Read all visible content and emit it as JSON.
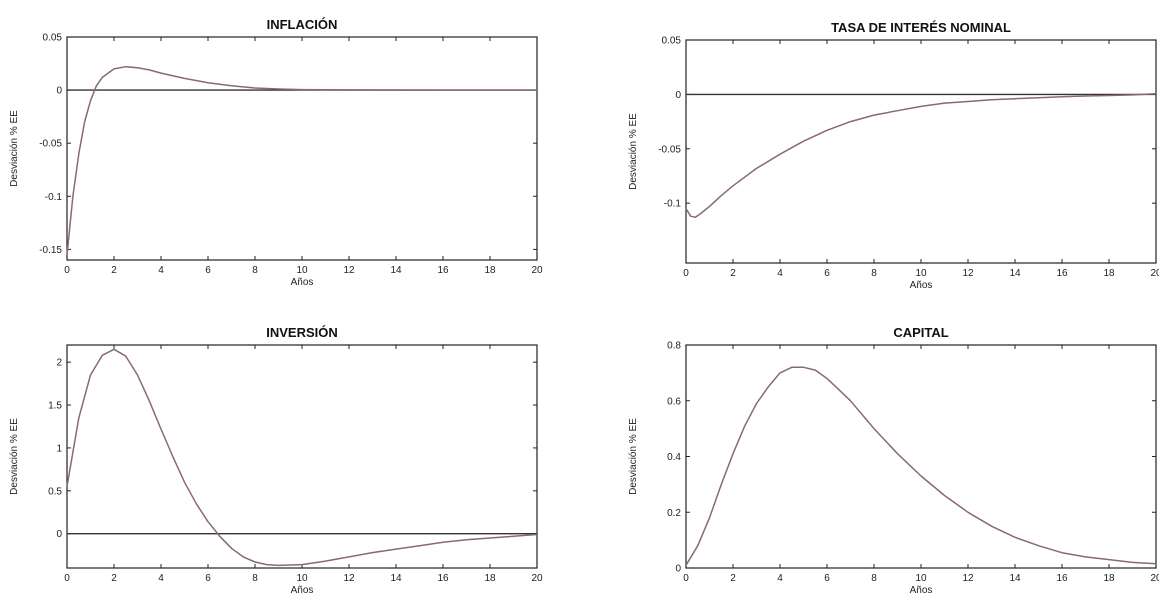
{
  "chart_data": [
    {
      "type": "line",
      "title": "INFLACIÓN",
      "xlabel": "Años",
      "ylabel": "Desviación % EE",
      "xlim": [
        0,
        20
      ],
      "ylim": [
        -0.16,
        0.05
      ],
      "xticks": [
        0,
        2,
        4,
        6,
        8,
        10,
        12,
        14,
        16,
        18,
        20
      ],
      "yticks": [
        -0.15,
        -0.1,
        -0.05,
        0,
        0.05
      ],
      "ytick_labels": [
        "-0.15",
        "-0.1",
        "-0.05",
        "0",
        "0.05"
      ],
      "zero_line": true,
      "series": [
        {
          "x": [
            0,
            0.25,
            0.5,
            0.75,
            1,
            1.25,
            1.5,
            2,
            2.5,
            3,
            3.5,
            4,
            5,
            6,
            7,
            8,
            9,
            10,
            12,
            14,
            16,
            18,
            20
          ],
          "y": [
            -0.155,
            -0.1,
            -0.06,
            -0.03,
            -0.01,
            0.004,
            0.012,
            0.02,
            0.022,
            0.021,
            0.019,
            0.016,
            0.011,
            0.007,
            0.004,
            0.002,
            0.001,
            0.0005,
            0.0002,
            0.0001,
            0,
            0,
            0
          ]
        }
      ]
    },
    {
      "type": "line",
      "title": "TASA DE INTERÉS NOMINAL",
      "xlabel": "Años",
      "ylabel": "Desviación % EE",
      "xlim": [
        0,
        20
      ],
      "ylim": [
        -0.155,
        0.05
      ],
      "xticks": [
        0,
        2,
        4,
        6,
        8,
        10,
        12,
        14,
        16,
        18,
        20
      ],
      "yticks": [
        -0.1,
        -0.05,
        0,
        0.05
      ],
      "ytick_labels": [
        "-0.1",
        "-0.05",
        "0",
        "0.05"
      ],
      "zero_line": true,
      "series": [
        {
          "x": [
            0,
            0.2,
            0.4,
            0.6,
            1,
            1.5,
            2,
            3,
            4,
            5,
            6,
            7,
            8,
            9,
            10,
            11,
            12,
            13,
            14,
            15,
            16,
            17,
            18,
            19,
            20
          ],
          "y": [
            -0.105,
            -0.112,
            -0.113,
            -0.11,
            -0.103,
            -0.093,
            -0.084,
            -0.068,
            -0.055,
            -0.043,
            -0.033,
            -0.025,
            -0.019,
            -0.015,
            -0.011,
            -0.008,
            -0.0065,
            -0.005,
            -0.004,
            -0.003,
            -0.0022,
            -0.0015,
            -0.001,
            -0.0005,
            0.0005
          ]
        }
      ]
    },
    {
      "type": "line",
      "title": "INVERSIÓN",
      "xlabel": "Años",
      "ylabel": "Desviación % EE",
      "xlim": [
        0,
        20
      ],
      "ylim": [
        -0.4,
        2.2
      ],
      "xticks": [
        0,
        2,
        4,
        6,
        8,
        10,
        12,
        14,
        16,
        18,
        20
      ],
      "yticks": [
        0,
        0.5,
        1,
        1.5,
        2
      ],
      "ytick_labels": [
        "0",
        "0.5",
        "1",
        "1.5",
        "2"
      ],
      "zero_line": true,
      "series": [
        {
          "x": [
            0,
            0.5,
            1,
            1.5,
            2,
            2.5,
            3,
            3.5,
            4,
            4.5,
            5,
            5.5,
            6,
            6.5,
            7,
            7.5,
            8,
            8.5,
            9,
            10,
            11,
            12,
            13,
            14,
            15,
            16,
            17,
            18,
            19,
            20
          ],
          "y": [
            0.55,
            1.35,
            1.85,
            2.08,
            2.15,
            2.07,
            1.85,
            1.55,
            1.22,
            0.9,
            0.6,
            0.35,
            0.14,
            -0.03,
            -0.17,
            -0.27,
            -0.33,
            -0.36,
            -0.37,
            -0.36,
            -0.32,
            -0.27,
            -0.22,
            -0.18,
            -0.14,
            -0.1,
            -0.07,
            -0.05,
            -0.03,
            -0.01
          ]
        }
      ]
    },
    {
      "type": "line",
      "title": "CAPITAL",
      "xlabel": "Años",
      "ylabel": "Desviación % EE",
      "xlim": [
        0,
        20
      ],
      "ylim": [
        0,
        0.8
      ],
      "xticks": [
        0,
        2,
        4,
        6,
        8,
        10,
        12,
        14,
        16,
        18,
        20
      ],
      "yticks": [
        0,
        0.2,
        0.4,
        0.6,
        0.8
      ],
      "ytick_labels": [
        "0",
        "0.2",
        "0.4",
        "0.6",
        "0.8"
      ],
      "zero_line": false,
      "series": [
        {
          "x": [
            0,
            0.5,
            1,
            1.5,
            2,
            2.5,
            3,
            3.5,
            4,
            4.5,
            5,
            5.5,
            6,
            6.5,
            7,
            8,
            9,
            10,
            11,
            12,
            13,
            14,
            15,
            16,
            17,
            18,
            19,
            20
          ],
          "y": [
            0.01,
            0.08,
            0.18,
            0.3,
            0.41,
            0.51,
            0.59,
            0.65,
            0.7,
            0.72,
            0.72,
            0.71,
            0.68,
            0.64,
            0.6,
            0.5,
            0.41,
            0.33,
            0.26,
            0.2,
            0.15,
            0.11,
            0.08,
            0.055,
            0.04,
            0.03,
            0.02,
            0.015
          ]
        }
      ]
    }
  ]
}
